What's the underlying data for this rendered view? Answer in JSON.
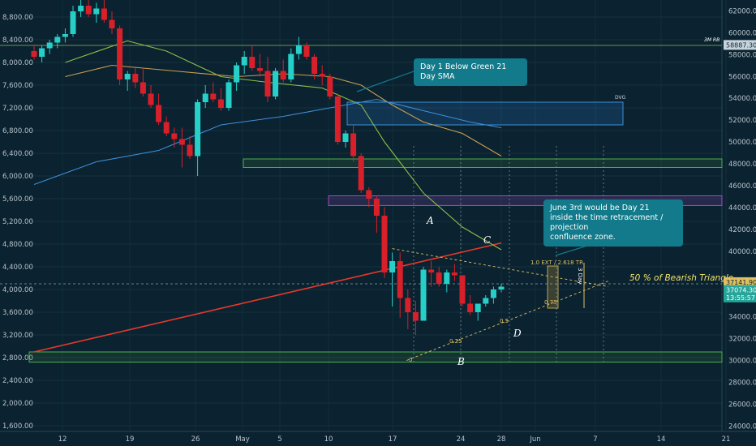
{
  "chart_data": {
    "type": "candlestick",
    "title": "",
    "axes": {
      "left": {
        "ticks": [
          "8,800.00",
          "8,400.00",
          "8,000.00",
          "7,600.00",
          "7,200.00",
          "6,800.00",
          "6,400.00",
          "6,000.00",
          "5,600.00",
          "5,200.00",
          "4,800.00",
          "4,400.00",
          "4,000.00",
          "3,600.00",
          "3,200.00",
          "2,800.00",
          "2,400.00",
          "2,000.00",
          "1,600.00"
        ],
        "range": [
          1500,
          9100
        ]
      },
      "right": {
        "ticks": [
          "62000.00",
          "60000.00",
          "58000.00",
          "56000.00",
          "54000.00",
          "52000.00",
          "50000.00",
          "48000.00",
          "46000.00",
          "44000.00",
          "42000.00",
          "40000.00",
          "36000.00",
          "34000.00",
          "32000.00",
          "30000.00",
          "28000.00",
          "26000.00",
          "24000.00"
        ],
        "range": [
          23500,
          63000
        ]
      },
      "x": {
        "ticks": [
          "12",
          "19",
          "26",
          "May",
          "5",
          "10",
          "17",
          "24",
          "28",
          "Jun",
          "7",
          "14",
          "21"
        ]
      }
    },
    "candles": [
      [
        8200,
        8300,
        8050,
        8100
      ],
      [
        8100,
        8300,
        8000,
        8250
      ],
      [
        8250,
        8400,
        8150,
        8350
      ],
      [
        8350,
        8500,
        8250,
        8450
      ],
      [
        8450,
        8600,
        8350,
        8500
      ],
      [
        8500,
        9000,
        8450,
        8900
      ],
      [
        8900,
        9100,
        8800,
        9000
      ],
      [
        9000,
        9100,
        8800,
        8850
      ],
      [
        8850,
        9050,
        8700,
        8950
      ],
      [
        8950,
        9100,
        8700,
        8750
      ],
      [
        8750,
        8900,
        8500,
        8600
      ],
      [
        8600,
        8650,
        7600,
        7700
      ],
      [
        7700,
        7850,
        7500,
        7800
      ],
      [
        7800,
        7900,
        7550,
        7650
      ],
      [
        7650,
        7900,
        7400,
        7450
      ],
      [
        7450,
        7600,
        7200,
        7250
      ],
      [
        7250,
        7450,
        6900,
        6950
      ],
      [
        6950,
        7050,
        6700,
        6750
      ],
      [
        6750,
        6850,
        6500,
        6650
      ],
      [
        6650,
        6850,
        6150,
        6550
      ],
      [
        6550,
        6700,
        6300,
        6350
      ],
      [
        6350,
        7350,
        6000,
        7300
      ],
      [
        7300,
        7600,
        7200,
        7450
      ],
      [
        7450,
        7650,
        7300,
        7350
      ],
      [
        7350,
        7550,
        7150,
        7200
      ],
      [
        7200,
        7700,
        7150,
        7650
      ],
      [
        7650,
        8000,
        7500,
        7950
      ],
      [
        7950,
        8200,
        7800,
        8100
      ],
      [
        8100,
        8300,
        7850,
        7900
      ],
      [
        7900,
        8150,
        7750,
        7850
      ],
      [
        7850,
        8100,
        7300,
        7400
      ],
      [
        7400,
        7900,
        7350,
        7850
      ],
      [
        7850,
        8050,
        7650,
        7700
      ],
      [
        7700,
        8250,
        7650,
        8150
      ],
      [
        8150,
        8450,
        8050,
        8300
      ],
      [
        8300,
        8350,
        8050,
        8100
      ],
      [
        8100,
        8150,
        7700,
        7800
      ],
      [
        7800,
        7950,
        7600,
        7750
      ],
      [
        7750,
        7800,
        7350,
        7400
      ],
      [
        7400,
        7450,
        6550,
        6600
      ],
      [
        6600,
        6800,
        6500,
        6750
      ],
      [
        6750,
        6900,
        6250,
        6350
      ],
      [
        6350,
        6400,
        5700,
        5750
      ],
      [
        5750,
        5800,
        5450,
        5600
      ],
      [
        5600,
        5650,
        5000,
        5300
      ],
      [
        5300,
        5450,
        4200,
        4300
      ],
      [
        4300,
        4650,
        3700,
        4500
      ],
      [
        4500,
        4650,
        3500,
        3850
      ],
      [
        3850,
        4000,
        3300,
        3600
      ],
      [
        3600,
        3800,
        3200,
        3450
      ],
      [
        3450,
        4400,
        3450,
        4350
      ],
      [
        4350,
        4500,
        4050,
        4300
      ],
      [
        4300,
        4400,
        4050,
        4100
      ],
      [
        4100,
        4350,
        3950,
        4300
      ],
      [
        4300,
        4450,
        4150,
        4250
      ],
      [
        4250,
        4250,
        3700,
        3750
      ],
      [
        3750,
        3900,
        3550,
        3600
      ],
      [
        3600,
        3750,
        3450,
        3750
      ],
      [
        3750,
        3900,
        3700,
        3850
      ],
      [
        3850,
        4050,
        3750,
        4000
      ],
      [
        4000,
        4100,
        3950,
        4050
      ]
    ],
    "lines": [
      {
        "name": "",
        "color": "#e8392b",
        "points": [
          [
            0,
            2900
          ],
          [
            60,
            4820
          ]
        ]
      },
      {
        "name": "",
        "color": "#8bbf4a",
        "points": [
          [
            4,
            8000
          ],
          [
            12,
            8380
          ],
          [
            17,
            8200
          ],
          [
            24,
            7750
          ],
          [
            30,
            7650
          ],
          [
            37,
            7550
          ],
          [
            42,
            7250
          ],
          [
            45,
            6600
          ],
          [
            50,
            5700
          ],
          [
            55,
            5100
          ],
          [
            60,
            4700
          ]
        ]
      },
      {
        "name": "",
        "color": "#c8a153",
        "points": [
          [
            4,
            7750
          ],
          [
            10,
            7950
          ],
          [
            18,
            7850
          ],
          [
            26,
            7750
          ],
          [
            32,
            7800
          ],
          [
            38,
            7750
          ],
          [
            42,
            7600
          ],
          [
            46,
            7250
          ],
          [
            50,
            6950
          ],
          [
            55,
            6750
          ],
          [
            60,
            6350
          ]
        ]
      },
      {
        "name": "",
        "color": "#3d8fd8",
        "points": [
          [
            0,
            5850
          ],
          [
            8,
            6250
          ],
          [
            16,
            6450
          ],
          [
            24,
            6900
          ],
          [
            32,
            7050
          ],
          [
            38,
            7200
          ],
          [
            44,
            7350
          ],
          [
            50,
            7150
          ],
          [
            56,
            6950
          ],
          [
            60,
            6850
          ]
        ]
      }
    ],
    "hlines": [
      {
        "label": "3M RB",
        "value": 8300
      },
      {
        "label": "",
        "value": 4100
      }
    ],
    "zones": [
      {
        "label": "DVG",
        "top": 7300,
        "bottom": 6900
      },
      {
        "label": "",
        "top": 6300,
        "bottom": 6150
      },
      {
        "label": "",
        "top": 5650,
        "bottom": 5480
      },
      {
        "label": "",
        "top": 2900,
        "bottom": 2720
      }
    ],
    "pattern_points": [
      {
        "label": "A",
        "x": 46,
        "y": 4720
      },
      {
        "label": "B",
        "x": 52,
        "y": 2750
      },
      {
        "label": "C",
        "x": 53,
        "y": 4440
      },
      {
        "label": "D",
        "x": 57,
        "y": 3300
      }
    ],
    "fib_labels": [
      {
        "label": "0",
        "value": 2850
      },
      {
        "label": "0.25",
        "value": 3100
      },
      {
        "label": "0.5",
        "value": 3400
      },
      {
        "label": "0.75",
        "value": 3700
      },
      {
        "label": "1.0 EXT / 2.618 TR",
        "value": 4330
      }
    ],
    "price_tags": [
      "58887.30",
      "37141.90",
      "37074.30",
      "13:55:57"
    ],
    "annotations": [
      "Day 1 Below Green 21 Day SMA",
      "June 3rd would be Day 21",
      "inside the time retracement / projection",
      "confluence zone.",
      "50 % of Bearish Triangle",
      "3 Day"
    ]
  }
}
